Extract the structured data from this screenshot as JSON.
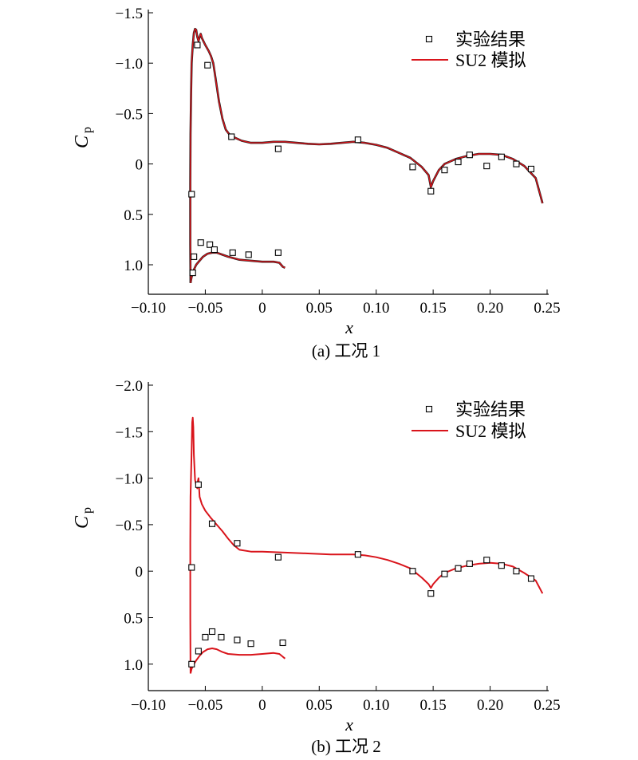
{
  "chart_data": [
    {
      "type": "line",
      "caption": "(a) 工况 1",
      "xlabel": "x",
      "ylabel": "C",
      "ylabel_sub": "p",
      "xlim": [
        -0.1,
        0.25
      ],
      "ylim_top": -1.5,
      "ylim_bottom": 1.3,
      "y_inverted": true,
      "xticks": [
        "−0.10",
        "−0.05",
        "0",
        "0.05",
        "0.10",
        "0.15",
        "0.20",
        "0.25"
      ],
      "yticks": [
        "−1.5",
        "−1.0",
        "−0.5",
        "0",
        "0.5",
        "1.0"
      ],
      "legend": {
        "placement": "top-right",
        "exp_label": "实验结果",
        "sim_label": "SU2 模拟"
      },
      "experiment": [
        {
          "x": -0.062,
          "y": 0.3
        },
        {
          "x": -0.061,
          "y": 1.08
        },
        {
          "x": -0.06,
          "y": 0.92
        },
        {
          "x": -0.057,
          "y": -1.18
        },
        {
          "x": -0.054,
          "y": 0.78
        },
        {
          "x": -0.048,
          "y": -0.98
        },
        {
          "x": -0.046,
          "y": 0.8
        },
        {
          "x": -0.042,
          "y": 0.85
        },
        {
          "x": -0.027,
          "y": -0.27
        },
        {
          "x": -0.026,
          "y": 0.88
        },
        {
          "x": -0.012,
          "y": 0.9
        },
        {
          "x": 0.014,
          "y": -0.15
        },
        {
          "x": 0.014,
          "y": 0.88
        },
        {
          "x": 0.084,
          "y": -0.24
        },
        {
          "x": 0.132,
          "y": 0.03
        },
        {
          "x": 0.148,
          "y": 0.27
        },
        {
          "x": 0.16,
          "y": 0.06
        },
        {
          "x": 0.172,
          "y": -0.02
        },
        {
          "x": 0.182,
          "y": -0.09
        },
        {
          "x": 0.197,
          "y": 0.02
        },
        {
          "x": 0.21,
          "y": -0.07
        },
        {
          "x": 0.223,
          "y": 0.0
        },
        {
          "x": 0.236,
          "y": 0.05
        }
      ],
      "simulation_upper": [
        [
          -0.063,
          1.18
        ],
        [
          -0.0632,
          0.8
        ],
        [
          -0.0632,
          0.2
        ],
        [
          -0.063,
          -0.3
        ],
        [
          -0.0625,
          -0.7
        ],
        [
          -0.062,
          -1.0
        ],
        [
          -0.061,
          -1.18
        ],
        [
          -0.06,
          -1.3
        ],
        [
          -0.059,
          -1.34
        ],
        [
          -0.058,
          -1.33
        ],
        [
          -0.057,
          -1.26
        ],
        [
          -0.056,
          -1.22
        ],
        [
          -0.055,
          -1.26
        ],
        [
          -0.054,
          -1.29
        ],
        [
          -0.053,
          -1.25
        ],
        [
          -0.05,
          -1.18
        ],
        [
          -0.047,
          -1.12
        ],
        [
          -0.045,
          -1.07
        ],
        [
          -0.043,
          -1.0
        ],
        [
          -0.041,
          -0.85
        ],
        [
          -0.038,
          -0.62
        ],
        [
          -0.035,
          -0.45
        ],
        [
          -0.032,
          -0.34
        ],
        [
          -0.028,
          -0.28
        ],
        [
          -0.024,
          -0.26
        ],
        [
          -0.018,
          -0.23
        ],
        [
          -0.01,
          -0.21
        ],
        [
          0.0,
          -0.21
        ],
        [
          0.01,
          -0.22
        ],
        [
          0.02,
          -0.22
        ],
        [
          0.03,
          -0.21
        ],
        [
          0.04,
          -0.2
        ],
        [
          0.05,
          -0.195
        ],
        [
          0.06,
          -0.2
        ],
        [
          0.07,
          -0.21
        ],
        [
          0.08,
          -0.22
        ],
        [
          0.09,
          -0.21
        ],
        [
          0.1,
          -0.19
        ],
        [
          0.11,
          -0.16
        ],
        [
          0.12,
          -0.11
        ],
        [
          0.13,
          -0.06
        ],
        [
          0.14,
          0.03
        ],
        [
          0.146,
          0.11
        ],
        [
          0.148,
          0.23
        ],
        [
          0.15,
          0.17
        ],
        [
          0.155,
          0.06
        ],
        [
          0.16,
          0.0
        ],
        [
          0.17,
          -0.05
        ],
        [
          0.18,
          -0.08
        ],
        [
          0.19,
          -0.1
        ],
        [
          0.2,
          -0.1
        ],
        [
          0.21,
          -0.09
        ],
        [
          0.22,
          -0.05
        ],
        [
          0.23,
          0.02
        ],
        [
          0.24,
          0.14
        ],
        [
          0.246,
          0.39
        ]
      ],
      "simulation_lower": [
        [
          -0.063,
          1.18
        ],
        [
          -0.062,
          1.12
        ],
        [
          -0.06,
          1.05
        ],
        [
          -0.058,
          1.0
        ],
        [
          -0.055,
          0.96
        ],
        [
          -0.052,
          0.92
        ],
        [
          -0.048,
          0.89
        ],
        [
          -0.044,
          0.88
        ],
        [
          -0.04,
          0.88
        ],
        [
          -0.035,
          0.9
        ],
        [
          -0.03,
          0.92
        ],
        [
          -0.02,
          0.95
        ],
        [
          -0.01,
          0.96
        ],
        [
          0.0,
          0.97
        ],
        [
          0.01,
          0.97
        ],
        [
          0.015,
          0.98
        ],
        [
          0.018,
          1.02
        ],
        [
          0.02,
          1.03
        ]
      ]
    },
    {
      "type": "line",
      "caption": "(b) 工况 2",
      "xlabel": "x",
      "ylabel": "C",
      "ylabel_sub": "p",
      "xlim": [
        -0.1,
        0.25
      ],
      "ylim_top": -2.0,
      "ylim_bottom": 1.3,
      "y_inverted": true,
      "xticks": [
        "−0.10",
        "−0.05",
        "0",
        "0.05",
        "0.10",
        "0.15",
        "0.20",
        "0.25"
      ],
      "yticks": [
        "−2.0",
        "−1.5",
        "−1.0",
        "−0.5",
        "0",
        "0.5",
        "1.0"
      ],
      "legend": {
        "placement": "top-right",
        "exp_label": "实验结果",
        "sim_label": "SU2 模拟"
      },
      "experiment": [
        {
          "x": -0.062,
          "y": -0.04
        },
        {
          "x": -0.062,
          "y": 1.0
        },
        {
          "x": -0.056,
          "y": 0.86
        },
        {
          "x": -0.056,
          "y": -0.93
        },
        {
          "x": -0.05,
          "y": 0.71
        },
        {
          "x": -0.044,
          "y": -0.51
        },
        {
          "x": -0.044,
          "y": 0.65
        },
        {
          "x": -0.036,
          "y": 0.71
        },
        {
          "x": -0.022,
          "y": -0.3
        },
        {
          "x": -0.022,
          "y": 0.74
        },
        {
          "x": -0.01,
          "y": 0.78
        },
        {
          "x": 0.014,
          "y": -0.15
        },
        {
          "x": 0.018,
          "y": 0.77
        },
        {
          "x": 0.084,
          "y": -0.18
        },
        {
          "x": 0.132,
          "y": 0.0
        },
        {
          "x": 0.148,
          "y": 0.24
        },
        {
          "x": 0.16,
          "y": 0.03
        },
        {
          "x": 0.172,
          "y": -0.03
        },
        {
          "x": 0.182,
          "y": -0.08
        },
        {
          "x": 0.197,
          "y": -0.12
        },
        {
          "x": 0.21,
          "y": -0.06
        },
        {
          "x": 0.223,
          "y": 0.0
        },
        {
          "x": 0.236,
          "y": 0.08
        }
      ],
      "simulation_upper": [
        [
          -0.063,
          1.1
        ],
        [
          -0.0632,
          0.5
        ],
        [
          -0.0632,
          -0.3
        ],
        [
          -0.063,
          -0.8
        ],
        [
          -0.062,
          -1.3
        ],
        [
          -0.0615,
          -1.6
        ],
        [
          -0.061,
          -1.65
        ],
        [
          -0.0605,
          -1.55
        ],
        [
          -0.06,
          -1.25
        ],
        [
          -0.059,
          -0.98
        ],
        [
          -0.058,
          -0.93
        ],
        [
          -0.057,
          -0.89
        ],
        [
          -0.0565,
          -0.97
        ],
        [
          -0.056,
          -1.0
        ],
        [
          -0.055,
          -0.8
        ],
        [
          -0.053,
          -0.72
        ],
        [
          -0.05,
          -0.65
        ],
        [
          -0.045,
          -0.57
        ],
        [
          -0.04,
          -0.5
        ],
        [
          -0.035,
          -0.43
        ],
        [
          -0.03,
          -0.35
        ],
        [
          -0.025,
          -0.28
        ],
        [
          -0.02,
          -0.23
        ],
        [
          -0.01,
          -0.21
        ],
        [
          0.0,
          -0.21
        ],
        [
          0.02,
          -0.2
        ],
        [
          0.04,
          -0.19
        ],
        [
          0.06,
          -0.18
        ],
        [
          0.08,
          -0.18
        ],
        [
          0.09,
          -0.17
        ],
        [
          0.1,
          -0.15
        ],
        [
          0.11,
          -0.12
        ],
        [
          0.12,
          -0.08
        ],
        [
          0.13,
          -0.03
        ],
        [
          0.14,
          0.07
        ],
        [
          0.146,
          0.14
        ],
        [
          0.148,
          0.18
        ],
        [
          0.15,
          0.14
        ],
        [
          0.155,
          0.07
        ],
        [
          0.16,
          0.02
        ],
        [
          0.17,
          -0.03
        ],
        [
          0.18,
          -0.06
        ],
        [
          0.19,
          -0.08
        ],
        [
          0.2,
          -0.09
        ],
        [
          0.21,
          -0.08
        ],
        [
          0.22,
          -0.05
        ],
        [
          0.23,
          0.02
        ],
        [
          0.24,
          0.1
        ],
        [
          0.246,
          0.24
        ]
      ],
      "simulation_lower": [
        [
          -0.063,
          1.1
        ],
        [
          -0.062,
          1.05
        ],
        [
          -0.06,
          1.0
        ],
        [
          -0.058,
          0.96
        ],
        [
          -0.055,
          0.91
        ],
        [
          -0.052,
          0.87
        ],
        [
          -0.048,
          0.84
        ],
        [
          -0.044,
          0.83
        ],
        [
          -0.04,
          0.84
        ],
        [
          -0.035,
          0.87
        ],
        [
          -0.03,
          0.89
        ],
        [
          -0.02,
          0.9
        ],
        [
          -0.01,
          0.9
        ],
        [
          0.0,
          0.89
        ],
        [
          0.01,
          0.88
        ],
        [
          0.015,
          0.89
        ],
        [
          0.018,
          0.92
        ],
        [
          0.02,
          0.94
        ]
      ]
    }
  ]
}
